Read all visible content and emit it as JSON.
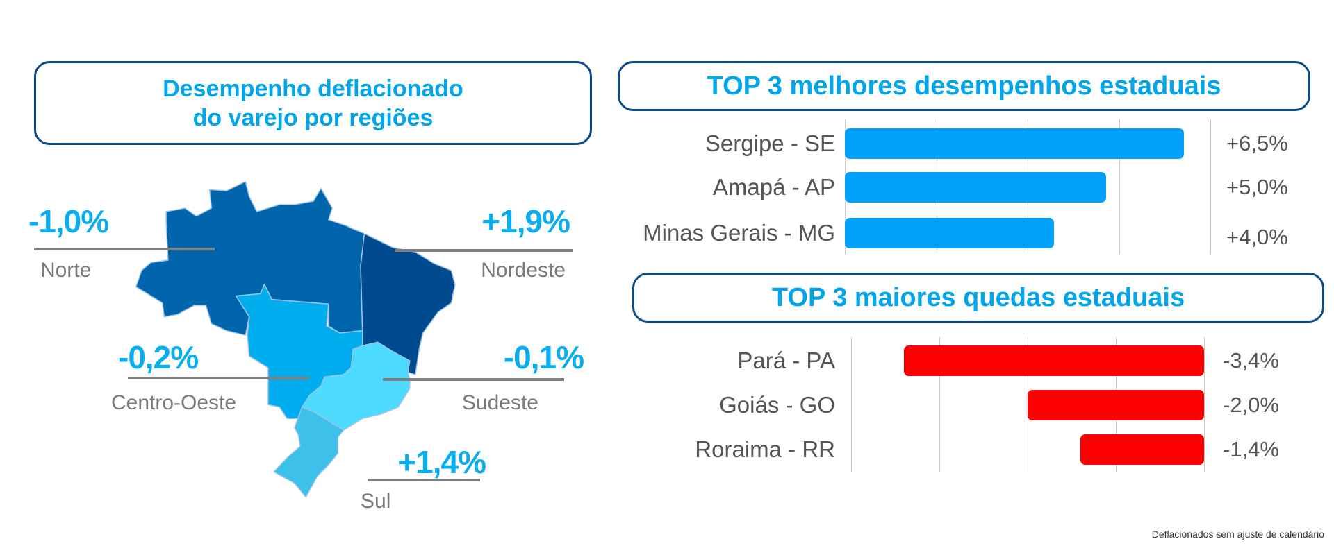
{
  "left_panel": {
    "title_line1": "Desempenho deflacionado",
    "title_line2": "do varejo por regiões",
    "regions": [
      {
        "name": "Norte",
        "value": "-1,0%",
        "color": "#0065AD"
      },
      {
        "name": "Nordeste",
        "value": "+1,9%",
        "color": "#004A8F"
      },
      {
        "name": "Centro-Oeste",
        "value": "-0,2%",
        "color": "#00AEEF"
      },
      {
        "name": "Sudeste",
        "value": "-0,1%",
        "color": "#4DDBFF"
      },
      {
        "name": "Sul",
        "value": "+1,4%",
        "color": "#3DC1EB"
      }
    ]
  },
  "chart_data": [
    {
      "type": "bar",
      "orientation": "horizontal",
      "title": "TOP 3 melhores desempenhos estaduais",
      "categories": [
        "Sergipe - SE",
        "Amapá - AP",
        "Minas Gerais - MG"
      ],
      "values": [
        6.5,
        5.0,
        4.0
      ],
      "value_labels": [
        "+6,5%",
        "+5,0%",
        "+4,0%"
      ],
      "xlim": [
        0,
        7
      ],
      "grid": true,
      "color": "#03A1FC"
    },
    {
      "type": "bar",
      "orientation": "horizontal",
      "title": "TOP 3 maiores quedas estaduais",
      "categories": [
        "Pará - PA",
        "Goiás - GO",
        "Roraima - RR"
      ],
      "values": [
        -3.4,
        -2.0,
        -1.4
      ],
      "value_labels": [
        "-3,4%",
        "-2,0%",
        "-1,4%"
      ],
      "xlim": [
        -4,
        0
      ],
      "grid": true,
      "color": "#FF0000"
    }
  ],
  "footnote": "Deflacionados sem ajuste de calendário"
}
